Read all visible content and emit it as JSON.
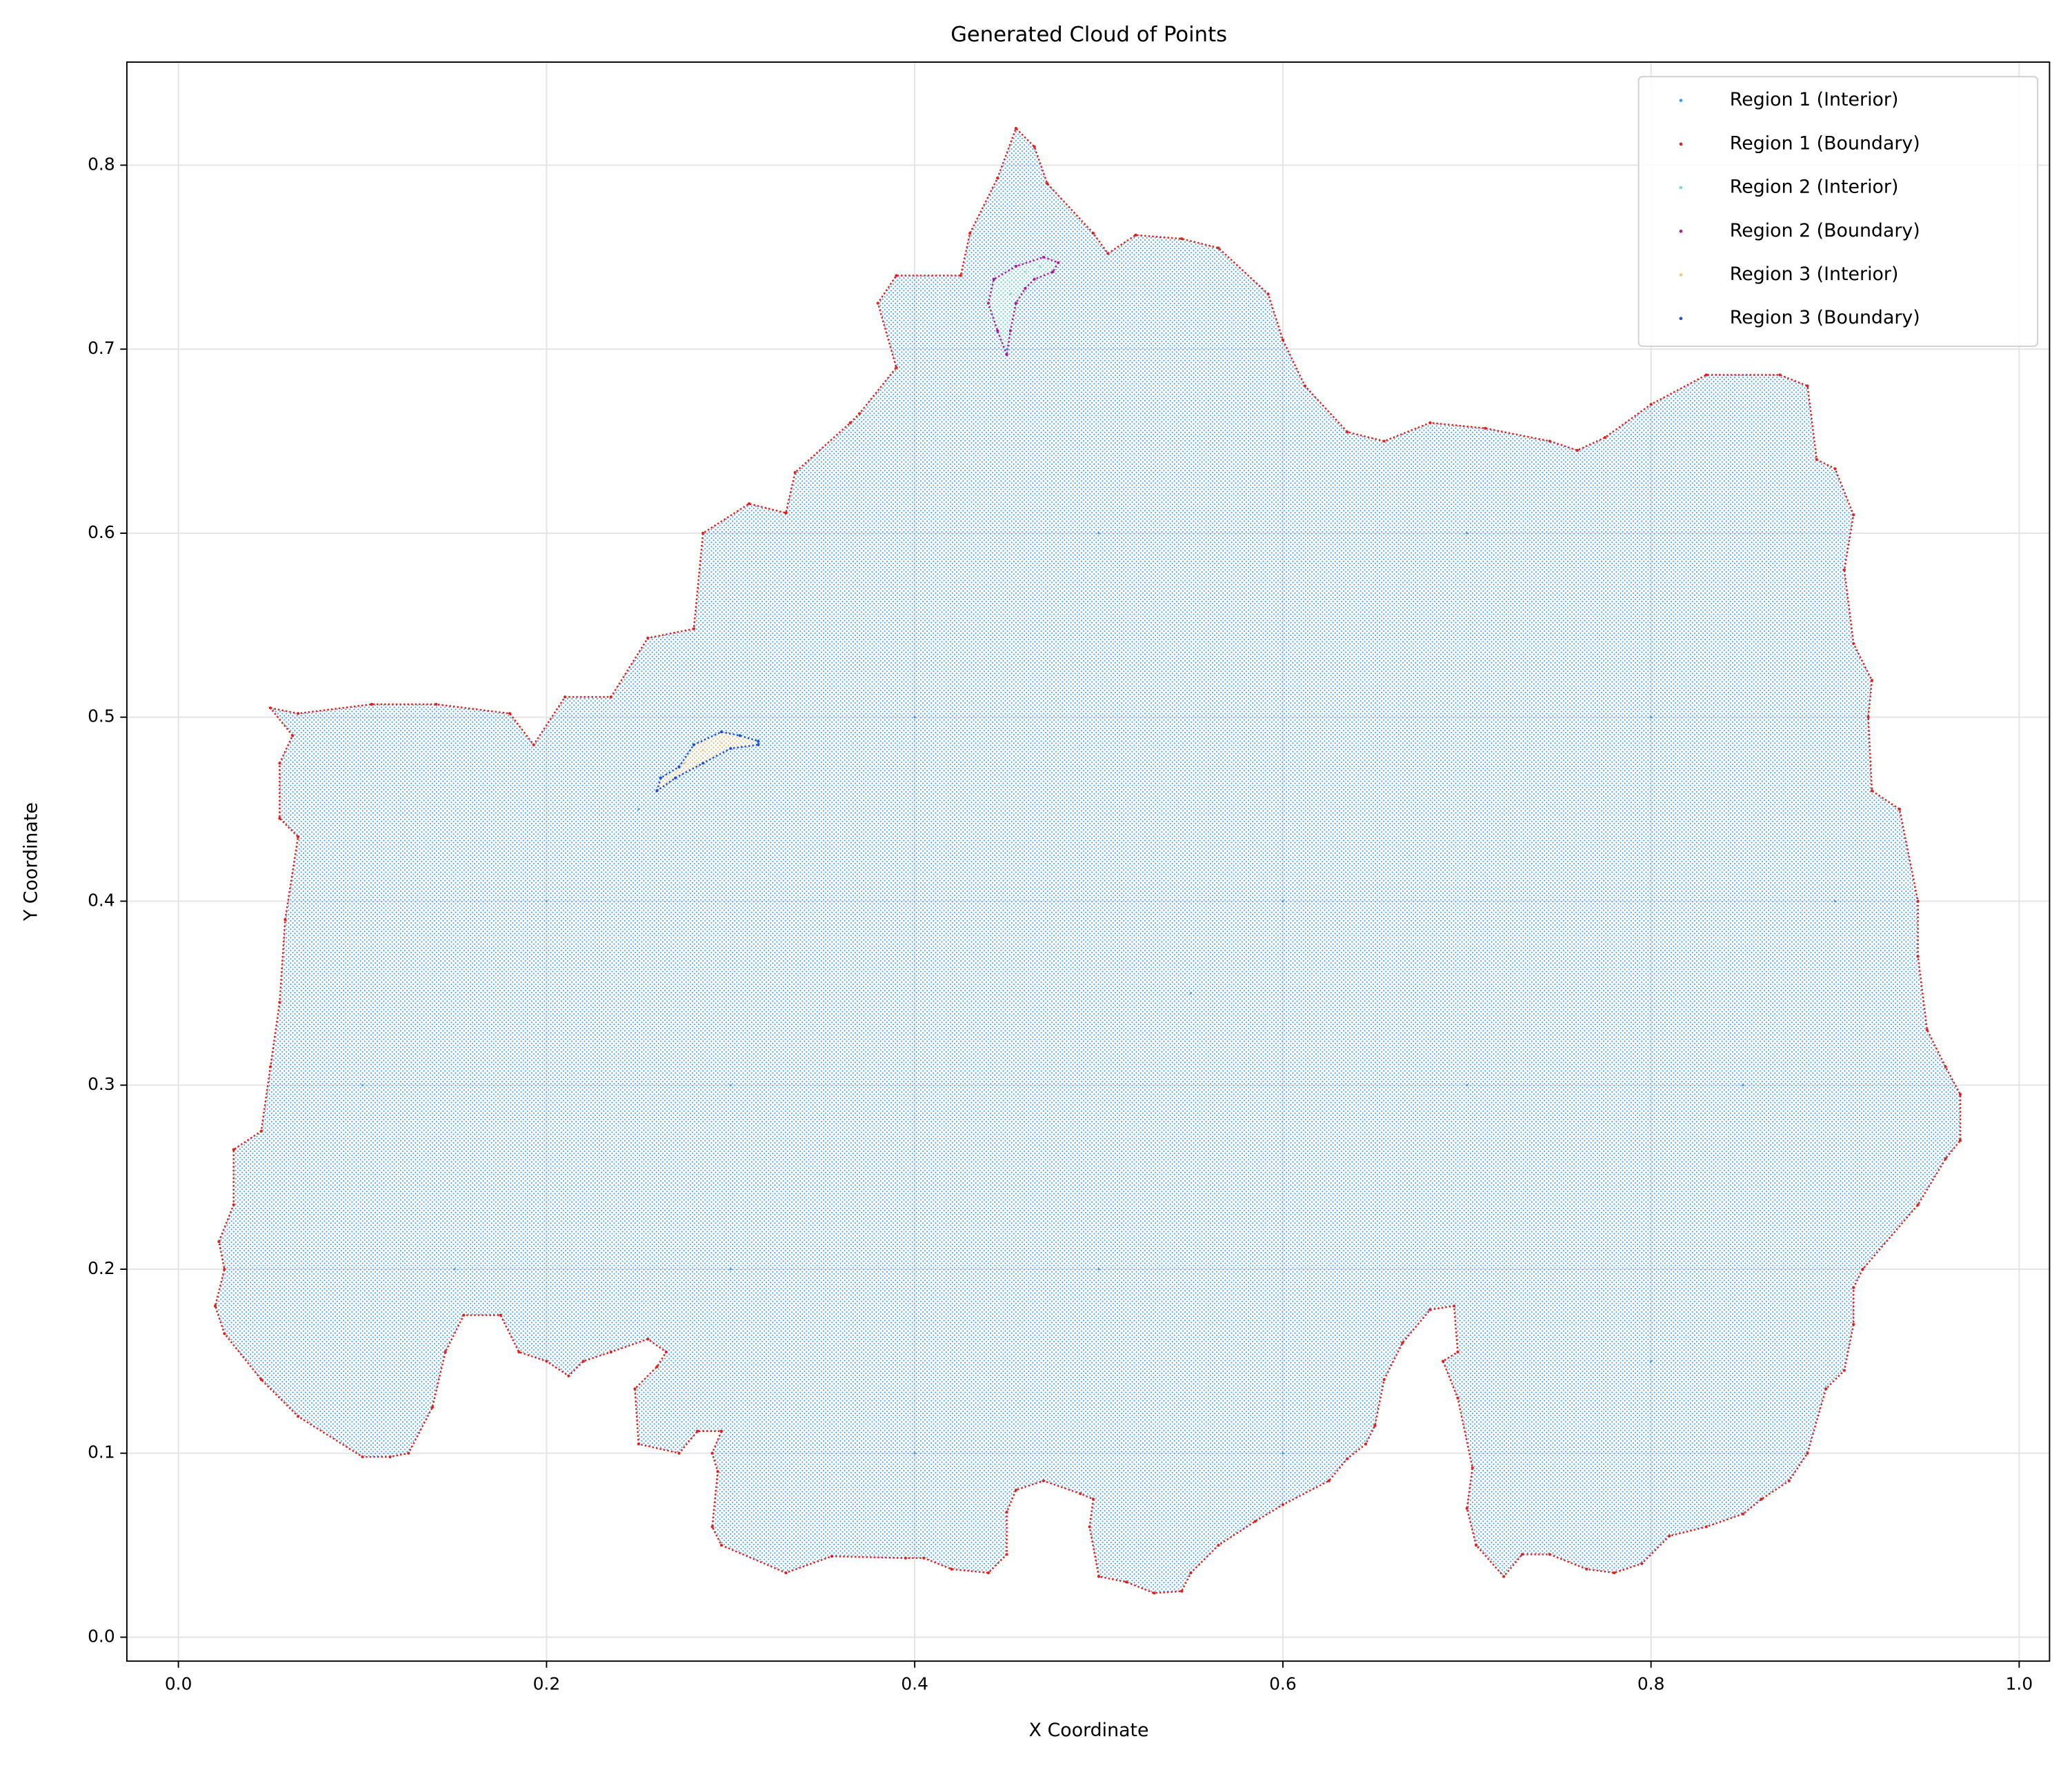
{
  "chart_data": {
    "type": "scatter",
    "title": "Generated Cloud of Points",
    "x_label": "X Coordinate",
    "y_label": "Y Coordinate",
    "xlim": [
      -0.028,
      1.0165
    ],
    "ylim": [
      -0.013,
      0.856
    ],
    "xticks": [
      {
        "value": 0,
        "label": "0.0"
      },
      0.2,
      0.4,
      0.6,
      0.8,
      {
        "value": 1,
        "label": "1.0"
      }
    ],
    "yticks": [
      {
        "value": 0,
        "label": "0.0"
      },
      0.1,
      0.2,
      0.3,
      0.4,
      0.5,
      0.6,
      0.7,
      0.8
    ],
    "grid": true,
    "legend": "upper right",
    "series": [
      {
        "name": "Region 1 (Interior)",
        "color": "#3f9be8",
        "x": [
          0.1,
          0.2,
          0.3,
          0.4,
          0.5,
          0.6,
          0.7,
          0.8,
          0.85,
          0.5,
          0.4,
          0.6,
          0.8,
          0.9,
          0.3,
          0.15,
          0.45,
          0.7,
          0.25,
          0.55
        ],
        "y": [
          0.3,
          0.4,
          0.3,
          0.5,
          0.6,
          0.4,
          0.3,
          0.5,
          0.3,
          0.2,
          0.1,
          0.1,
          0.15,
          0.4,
          0.2,
          0.2,
          0.7,
          0.6,
          0.45,
          0.35
        ]
      },
      {
        "name": "Region 1 (Boundary)",
        "color": "#e0201c",
        "x": [
          0.05,
          0.065,
          0.105,
          0.14,
          0.18,
          0.193,
          0.21,
          0.235,
          0.255,
          0.28,
          0.285,
          0.31,
          0.33,
          0.335,
          0.365,
          0.37,
          0.39,
          0.38,
          0.39,
          0.425,
          0.43,
          0.445,
          0.455,
          0.465,
          0.472,
          0.497,
          0.505,
          0.52,
          0.545,
          0.565,
          0.592,
          0.6,
          0.612,
          0.635,
          0.655,
          0.68,
          0.71,
          0.745,
          0.76,
          0.775,
          0.8,
          0.83,
          0.87,
          0.885,
          0.89,
          0.9,
          0.91,
          0.905,
          0.91,
          0.92,
          0.918,
          0.92,
          0.935,
          0.945,
          0.945,
          0.95,
          0.96,
          0.968,
          0.968,
          0.96,
          0.945,
          0.915,
          0.91,
          0.91,
          0.905,
          0.895,
          0.885,
          0.875,
          0.86,
          0.85,
          0.83,
          0.81,
          0.795,
          0.78,
          0.765,
          0.745,
          0.73,
          0.72,
          0.705,
          0.7,
          0.703,
          0.695,
          0.687,
          0.695,
          0.693,
          0.68,
          0.665,
          0.655,
          0.65,
          0.645,
          0.635,
          0.625,
          0.6,
          0.585,
          0.565,
          0.55,
          0.545,
          0.53,
          0.515,
          0.5,
          0.495,
          0.497,
          0.49,
          0.47,
          0.455,
          0.45,
          0.45,
          0.44,
          0.42,
          0.405,
          0.395,
          0.355,
          0.33,
          0.295,
          0.29,
          0.293,
          0.29,
          0.295,
          0.282,
          0.272,
          0.25,
          0.248,
          0.26,
          0.265,
          0.255,
          0.235,
          0.22,
          0.212,
          0.2,
          0.185,
          0.175,
          0.155,
          0.145,
          0.138,
          0.125,
          0.115,
          0.1,
          0.065,
          0.045,
          0.025,
          0.02,
          0.025,
          0.022,
          0.03,
          0.03,
          0.045,
          0.05,
          0.055,
          0.058,
          0.065,
          0.055,
          0.055,
          0.062
        ],
        "y": [
          0.505,
          0.502,
          0.507,
          0.507,
          0.502,
          0.485,
          0.511,
          0.511,
          0.543,
          0.548,
          0.6,
          0.616,
          0.611,
          0.633,
          0.66,
          0.665,
          0.69,
          0.725,
          0.74,
          0.74,
          0.763,
          0.793,
          0.82,
          0.81,
          0.79,
          0.763,
          0.752,
          0.762,
          0.76,
          0.755,
          0.73,
          0.705,
          0.68,
          0.655,
          0.65,
          0.66,
          0.657,
          0.65,
          0.645,
          0.652,
          0.67,
          0.686,
          0.686,
          0.68,
          0.64,
          0.635,
          0.61,
          0.58,
          0.54,
          0.52,
          0.5,
          0.46,
          0.45,
          0.4,
          0.37,
          0.33,
          0.31,
          0.295,
          0.27,
          0.26,
          0.235,
          0.2,
          0.19,
          0.17,
          0.145,
          0.135,
          0.1,
          0.085,
          0.075,
          0.067,
          0.06,
          0.055,
          0.04,
          0.035,
          0.037,
          0.045,
          0.045,
          0.033,
          0.05,
          0.07,
          0.092,
          0.13,
          0.15,
          0.155,
          0.18,
          0.178,
          0.16,
          0.14,
          0.115,
          0.105,
          0.097,
          0.085,
          0.072,
          0.063,
          0.05,
          0.035,
          0.025,
          0.024,
          0.03,
          0.033,
          0.06,
          0.075,
          0.078,
          0.085,
          0.08,
          0.068,
          0.045,
          0.035,
          0.037,
          0.043,
          0.043,
          0.044,
          0.035,
          0.05,
          0.06,
          0.09,
          0.1,
          0.112,
          0.112,
          0.1,
          0.105,
          0.135,
          0.147,
          0.155,
          0.162,
          0.155,
          0.15,
          0.142,
          0.15,
          0.155,
          0.175,
          0.175,
          0.155,
          0.125,
          0.1,
          0.098,
          0.098,
          0.12,
          0.14,
          0.165,
          0.18,
          0.2,
          0.215,
          0.235,
          0.265,
          0.275,
          0.31,
          0.345,
          0.39,
          0.435,
          0.445,
          0.475,
          0.49
        ]
      },
      {
        "name": "Region 2 (Interior)",
        "color": "#7fd8c8",
        "x": [
          0.452,
          0.46,
          0.468
        ],
        "y": [
          0.73,
          0.742,
          0.745
        ]
      },
      {
        "name": "Region 2 (Boundary)",
        "color": "#b0169e",
        "x": [
          0.45,
          0.445,
          0.44,
          0.443,
          0.455,
          0.47,
          0.478,
          0.475,
          0.465,
          0.46,
          0.455,
          0.452
        ],
        "y": [
          0.697,
          0.71,
          0.725,
          0.738,
          0.745,
          0.75,
          0.747,
          0.742,
          0.738,
          0.733,
          0.725,
          0.71
        ]
      },
      {
        "name": "Region 3 (Interior)",
        "color": "#f0c878",
        "x": [
          0.285,
          0.295,
          0.275
        ],
        "y": [
          0.482,
          0.486,
          0.475
        ]
      },
      {
        "name": "Region 3 (Boundary)",
        "color": "#1a4fd8",
        "x": [
          0.26,
          0.262,
          0.272,
          0.28,
          0.295,
          0.305,
          0.315,
          0.315,
          0.3,
          0.285,
          0.27
        ],
        "y": [
          0.46,
          0.467,
          0.473,
          0.485,
          0.492,
          0.49,
          0.487,
          0.485,
          0.483,
          0.475,
          0.467
        ]
      }
    ]
  }
}
